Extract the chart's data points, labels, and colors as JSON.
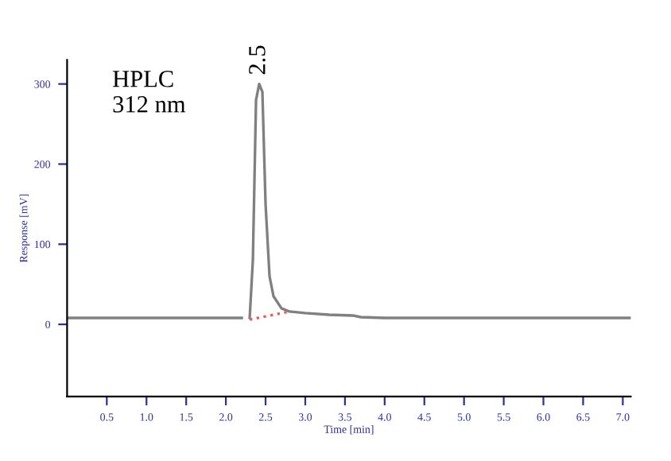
{
  "chart_data": {
    "type": "line",
    "xlabel": "Time [min]",
    "ylabel": "Response [mV]",
    "xlim": [
      0,
      7.1
    ],
    "ylim": [
      -90,
      330
    ],
    "xticks": [
      0.5,
      {
        "value": 1,
        "label": "1.0"
      },
      1.5,
      {
        "value": 2,
        "label": "2.0"
      },
      2.5,
      {
        "value": 3,
        "label": "3.0"
      },
      3.5,
      {
        "value": 4,
        "label": "4.0"
      },
      4.5,
      {
        "value": 5,
        "label": "5.0"
      },
      5.5,
      {
        "value": 6,
        "label": "6.0"
      },
      6.5,
      {
        "value": 7,
        "label": "7.0"
      }
    ],
    "yticks": [
      0,
      100,
      200,
      300
    ],
    "grid": false,
    "legend": false,
    "series": [
      {
        "color": "#808080",
        "line_style": "solid",
        "x": [
          0,
          2.2,
          2.25,
          2.3,
          2.34,
          2.38,
          2.42,
          2.46,
          2.5,
          2.55,
          2.6,
          2.7,
          2.8,
          3.0,
          3.3,
          3.6,
          3.7,
          4.0,
          5.0,
          6.0,
          7.1
        ],
        "values": [
          8,
          8,
          null,
          8,
          80,
          280,
          300,
          290,
          150,
          60,
          35,
          20,
          16,
          14,
          12,
          11,
          9,
          8,
          8,
          8,
          8
        ]
      },
      {
        "color": "#e06060",
        "line_style": "dotted",
        "x": [
          2.3,
          2.8
        ],
        "values": [
          6,
          16
        ]
      }
    ],
    "annotations": [
      "HPLC\n312 nm",
      {
        "text": "2.5",
        "x": 2.42,
        "y": 300
      }
    ]
  }
}
